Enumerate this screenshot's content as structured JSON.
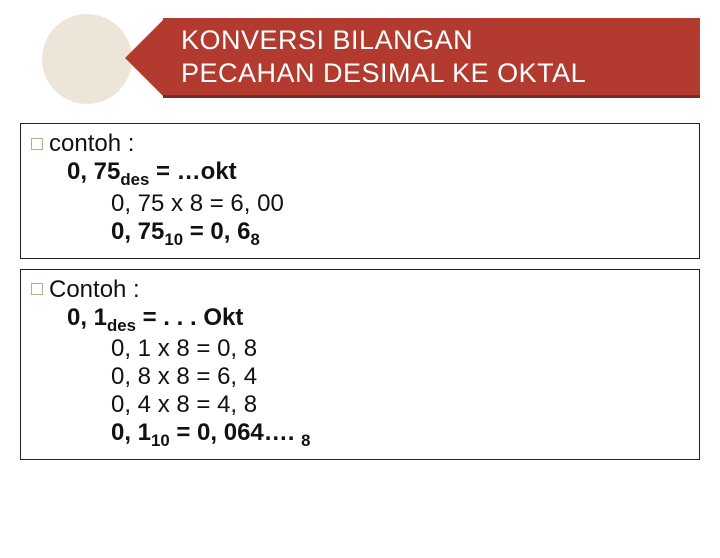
{
  "colors": {
    "circle_fill": "#ede6d8",
    "band_fill": "#b23a2e",
    "band_underline": "#7a2a21",
    "title_text": "#ffffff",
    "body_text": "#111111",
    "box_border": "#222222",
    "bullet_border": "#bfa98a",
    "background": "#ffffff"
  },
  "typography": {
    "title_fontsize": 27,
    "body_fontsize": 24,
    "font_family": "Arial"
  },
  "title": {
    "line1": "KONVERSI BILANGAN",
    "line2": "PECAHAN DESIMAL KE OKTAL"
  },
  "example1": {
    "lead": "contoh :",
    "problem_prefix": "0, 75",
    "problem_sub": "des",
    "problem_suffix": " = …okt",
    "step1": "0, 75 x 8 = 6, 00",
    "result_prefix": "0, 75",
    "result_sub1": "10",
    "result_mid": " = 0, 6",
    "result_sub2": "8"
  },
  "example2": {
    "lead": "Contoh :",
    "problem_prefix": "0, 1",
    "problem_sub": "des",
    "problem_suffix": " = . . . Okt",
    "step1": "0, 1 x 8 = 0, 8",
    "step2": "0, 8 x 8 = 6, 4",
    "step3": "0, 4 x 8 = 4, 8",
    "result_prefix": "0, 1",
    "result_sub1": "10",
    "result_mid": " = 0, 064…. ",
    "result_sub2": "8"
  }
}
